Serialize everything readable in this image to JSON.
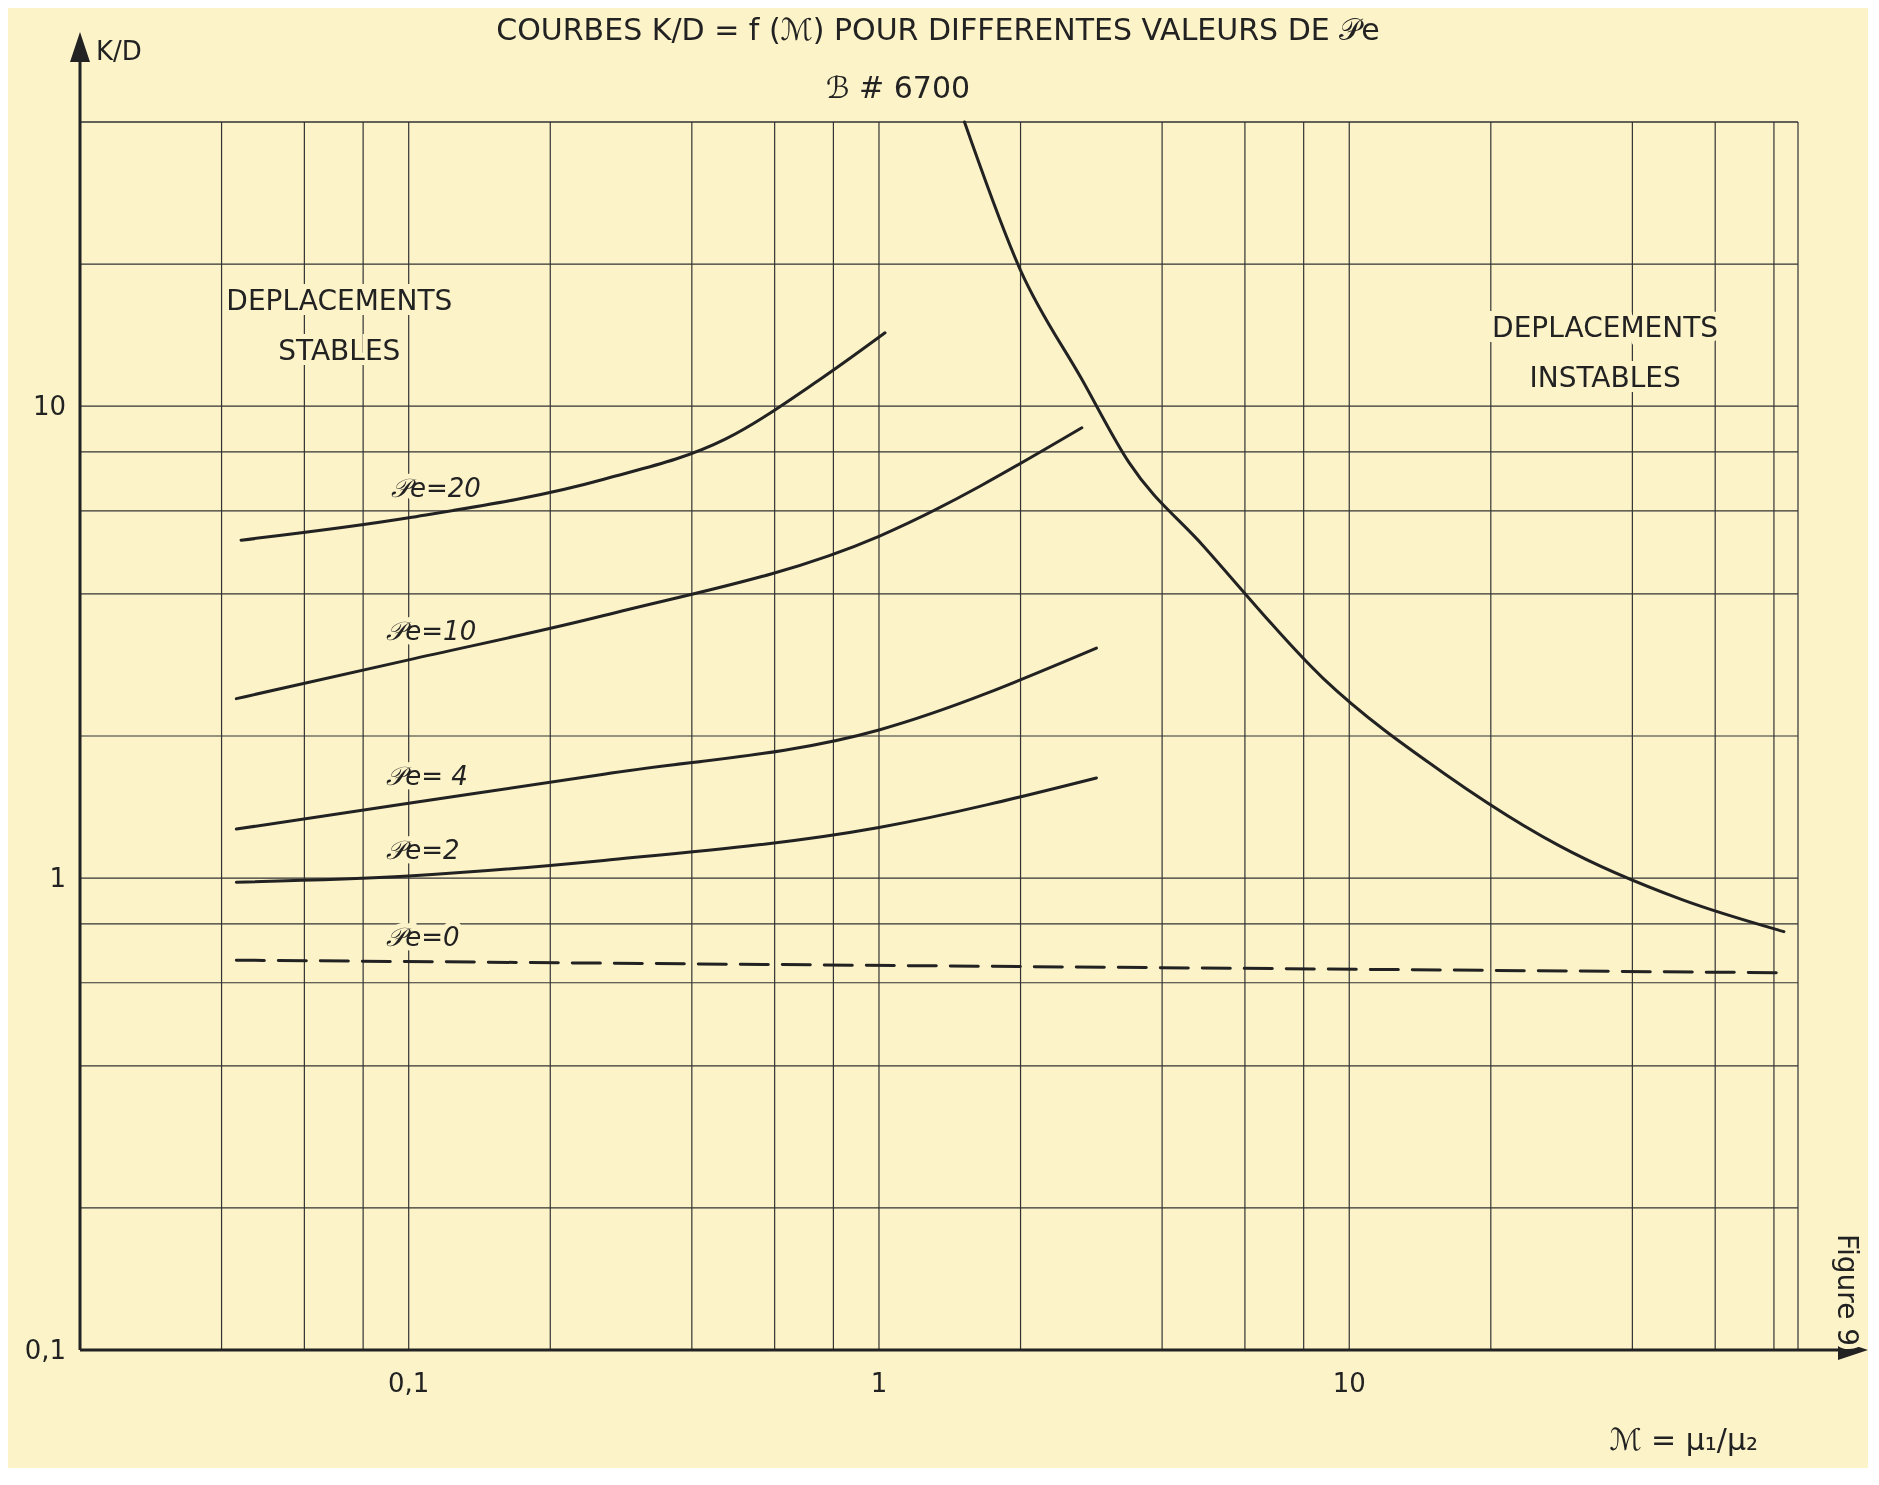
{
  "chart_data": {
    "type": "line",
    "title": "COURBES K/D = f (ℳ) POUR DIFFERENTES VALEURS DE 𝒫e",
    "subtitle": "ℬ # 6700",
    "xlabel": "ℳ = μ₁/μ₂",
    "ylabel": "K/D",
    "log": "xy",
    "grid": true,
    "marker": "none",
    "xlim": [
      0.02,
      90
    ],
    "ylim": [
      0.1,
      40
    ],
    "xticks": [
      {
        "value": 0.04,
        "label": null
      },
      {
        "value": 0.06,
        "label": null
      },
      {
        "value": 0.08,
        "label": null
      },
      {
        "value": 0.1,
        "label": "0,1"
      },
      {
        "value": 0.2,
        "label": null
      },
      {
        "value": 0.4,
        "label": null
      },
      {
        "value": 0.6,
        "label": null
      },
      {
        "value": 0.8,
        "label": null
      },
      1,
      {
        "value": 2,
        "label": null
      },
      {
        "value": 4,
        "label": null
      },
      {
        "value": 6,
        "label": null
      },
      {
        "value": 8,
        "label": null
      },
      10,
      {
        "value": 20,
        "label": null
      },
      {
        "value": 40,
        "label": null
      },
      {
        "value": 60,
        "label": null
      },
      {
        "value": 80,
        "label": null
      }
    ],
    "yticks": [
      {
        "value": 0.1,
        "label": "0,1"
      },
      {
        "value": 0.2,
        "label": null
      },
      {
        "value": 0.4,
        "label": null
      },
      {
        "value": 0.6,
        "label": null
      },
      {
        "value": 0.8,
        "label": null
      },
      1,
      {
        "value": 2,
        "label": null
      },
      {
        "value": 4,
        "label": null
      },
      {
        "value": 6,
        "label": null
      },
      {
        "value": 8,
        "label": null
      },
      10,
      {
        "value": 20,
        "label": null
      },
      {
        "value": 40,
        "label": null
      }
    ],
    "series": [
      {
        "name": "𝒫e=20",
        "color": "#222222",
        "x": [
          0.044,
          0.1,
          0.26,
          0.47,
          0.75,
          1.03
        ],
        "values": [
          5.2,
          5.8,
          7.0,
          8.5,
          11.4,
          14.3
        ]
      },
      {
        "name": "𝒫e=10",
        "color": "#222222",
        "x": [
          0.043,
          0.1,
          0.26,
          1.0,
          2.7
        ],
        "values": [
          2.4,
          2.9,
          3.6,
          5.3,
          9.0
        ]
      },
      {
        "name": "𝒫e= 4",
        "color": "#222222",
        "x": [
          0.043,
          0.1,
          0.26,
          1.0,
          2.9
        ],
        "values": [
          1.27,
          1.44,
          1.66,
          2.06,
          3.07
        ]
      },
      {
        "name": "𝒫e=2",
        "color": "#222222",
        "x": [
          0.043,
          0.1,
          0.26,
          1.0,
          2.9
        ],
        "values": [
          0.98,
          1.01,
          1.09,
          1.28,
          1.63
        ]
      },
      {
        "name": "𝒫e=0",
        "color": "#222222",
        "line_style": "dashed",
        "x": [
          0.043,
          84
        ],
        "values": [
          0.67,
          0.63
        ]
      },
      {
        "color": "#222222",
        "x": [
          1.52,
          2.0,
          2.7,
          3.4,
          4.9,
          8.8,
          16,
          28,
          51,
          84
        ],
        "values": [
          40,
          19.4,
          11.4,
          7.6,
          5.05,
          2.65,
          1.66,
          1.17,
          0.9,
          0.77
        ]
      }
    ],
    "annotations": [
      "DEPLACEMENTS STABLES",
      "DEPLACEMENTS INSTABLES",
      "Figure 9"
    ]
  }
}
